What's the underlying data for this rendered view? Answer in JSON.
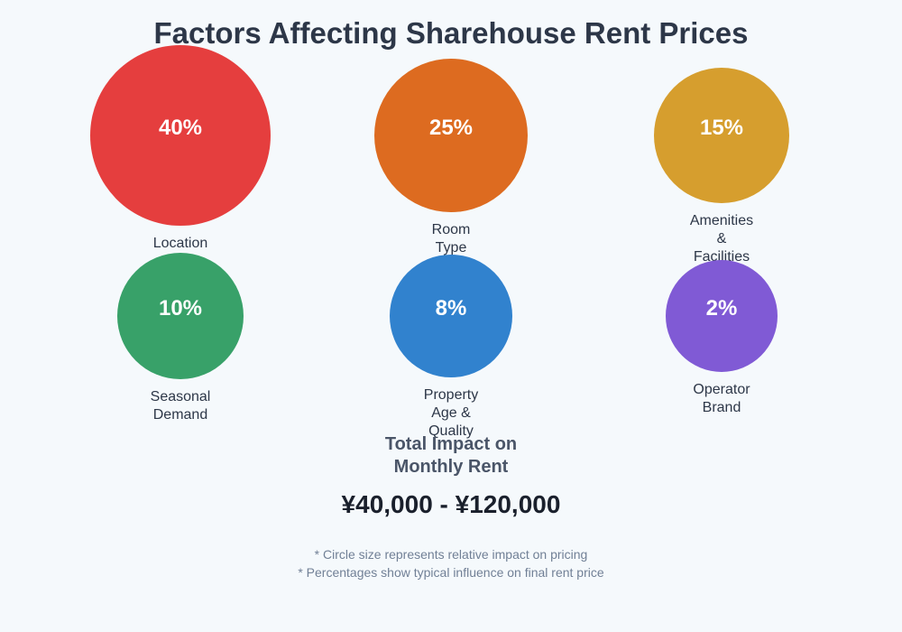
{
  "title": "Factors Affecting Sharehouse Rent Prices",
  "factors": [
    {
      "label": "Location",
      "percent": "40%",
      "color": "#e53e3e"
    },
    {
      "label": "Room Type",
      "percent": "25%",
      "color": "#dd6b20"
    },
    {
      "label": "Amenities & Facilities",
      "percent": "15%",
      "color": "#d69e2e"
    },
    {
      "label": "Seasonal Demand",
      "percent": "10%",
      "color": "#38a169"
    },
    {
      "label": "Property Age & Quality",
      "percent": "8%",
      "color": "#3182ce"
    },
    {
      "label": "Operator Brand",
      "percent": "2%",
      "color": "#805ad5"
    }
  ],
  "total": {
    "line1": "Total Impact on",
    "line2": "Monthly Rent",
    "range": "¥40,000 - ¥120,000"
  },
  "notes": [
    "* Circle size represents relative impact on pricing",
    "* Percentages show typical influence on final rent price"
  ]
}
